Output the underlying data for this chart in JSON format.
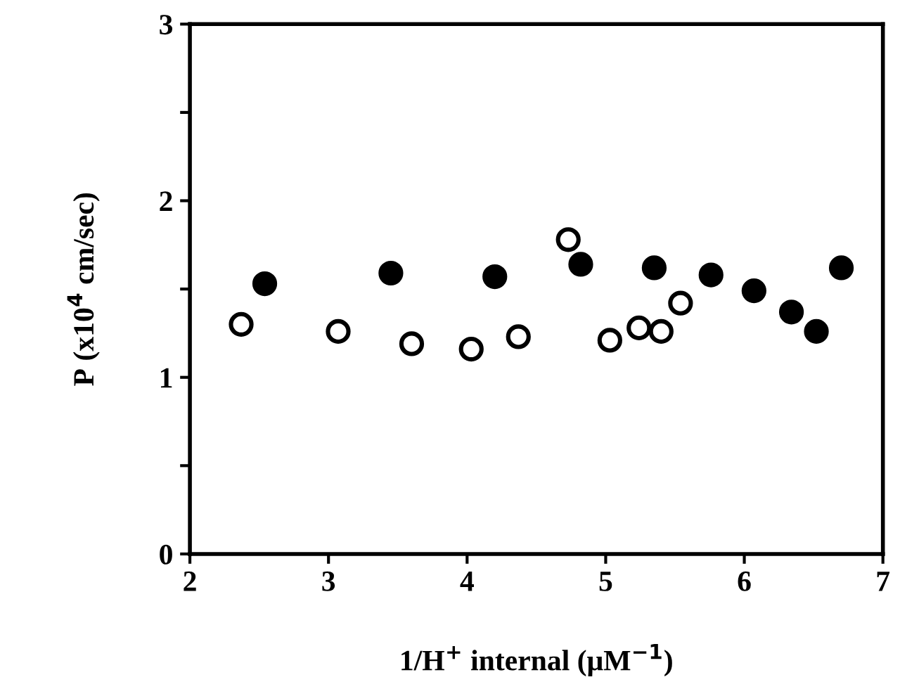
{
  "chart_data": {
    "type": "scatter",
    "xlabel": "1/H$^{+}$ internal (μM$^{−1}$)",
    "ylabel": "P (x10$^{4}$ cm/sec)",
    "xlim": [
      2,
      7
    ],
    "xticks": [
      2,
      3,
      4,
      5,
      6,
      7
    ],
    "ylim": [
      0,
      3
    ],
    "yticks": [
      0,
      {
        "value": 0.5,
        "label": null
      },
      1,
      {
        "value": 1.5,
        "label": null
      },
      2,
      {
        "value": 2.5,
        "label": null
      },
      3
    ],
    "grid": false,
    "marker": "circle",
    "series": [
      {
        "color": "#000000",
        "x": [
          2.54,
          3.45,
          4.2,
          4.82,
          5.35,
          5.76,
          6.07,
          6.34,
          6.52,
          6.7
        ],
        "values": [
          1.53,
          1.59,
          1.57,
          1.64,
          1.62,
          1.58,
          1.49,
          1.37,
          1.26,
          1.62
        ]
      },
      {
        "color": "#ffffff",
        "x": [
          2.37,
          3.07,
          3.6,
          4.03,
          4.37,
          4.73,
          5.03,
          5.24,
          5.4,
          5.54
        ],
        "values": [
          1.3,
          1.26,
          1.19,
          1.16,
          1.23,
          1.78,
          1.21,
          1.28,
          1.26,
          1.42
        ]
      }
    ]
  }
}
